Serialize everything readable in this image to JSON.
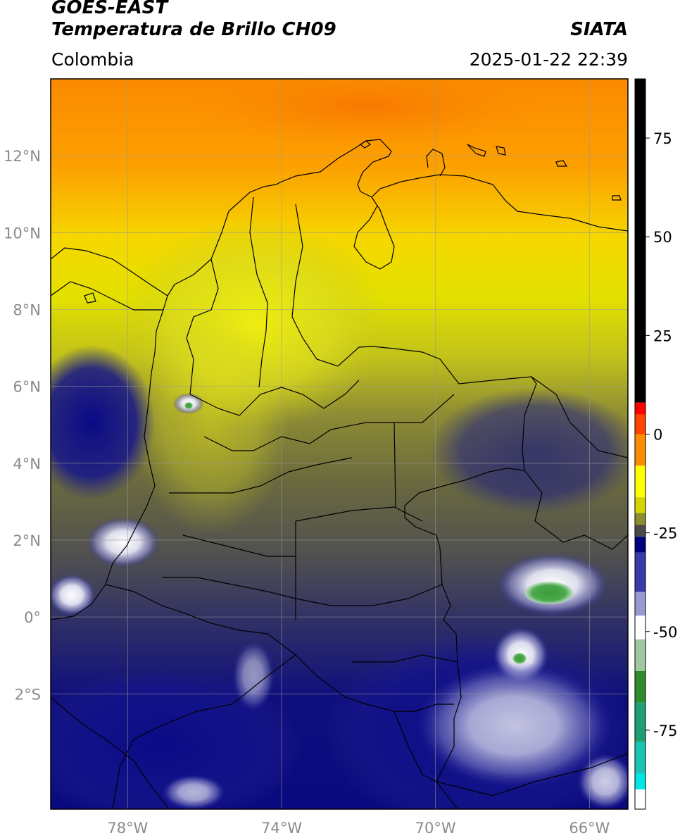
{
  "header": {
    "satellite": "GOES-EAST",
    "product": "Temperatura de Brillo CH09",
    "agency": "SIATA",
    "region": "Colombia",
    "timestamp": "2025-01-22 22:39"
  },
  "map": {
    "lat_range": [
      -5,
      14
    ],
    "lon_range": [
      -80,
      -65
    ],
    "lat_ticks": [
      {
        "value": 12,
        "label": "12°N"
      },
      {
        "value": 10,
        "label": "10°N"
      },
      {
        "value": 8,
        "label": "8°N"
      },
      {
        "value": 6,
        "label": "6°N"
      },
      {
        "value": 4,
        "label": "4°N"
      },
      {
        "value": 2,
        "label": "2°N"
      },
      {
        "value": 0,
        "label": "0°"
      },
      {
        "value": -2,
        "label": "2°S"
      }
    ],
    "lon_ticks": [
      {
        "value": -78,
        "label": "78°W"
      },
      {
        "value": -74,
        "label": "74°W"
      },
      {
        "value": -70,
        "label": "70°W"
      },
      {
        "value": -66,
        "label": "66°W"
      }
    ],
    "grid": true
  },
  "colorbar": {
    "range": [
      -95,
      90
    ],
    "ticks": [
      {
        "value": 75,
        "label": "75"
      },
      {
        "value": 50,
        "label": "50"
      },
      {
        "value": 25,
        "label": "25"
      },
      {
        "value": 0,
        "label": "0"
      },
      {
        "value": -25,
        "label": "-25"
      },
      {
        "value": -50,
        "label": "-50"
      },
      {
        "value": -75,
        "label": "-75"
      }
    ],
    "colors": {
      "above_8": "#000000",
      "warm_red": "#ff0000",
      "orange": "#ff8c00",
      "yellow": "#ffff00",
      "olive": "#8c8c30",
      "gray": "#4a4a4a",
      "navy": "#000080",
      "white": "#ffffff",
      "green": "#2e8b2e",
      "cyan": "#00e5e5"
    }
  }
}
